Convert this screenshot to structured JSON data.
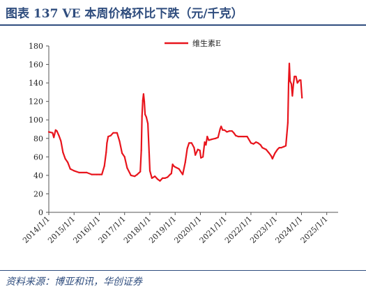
{
  "header": {
    "title": "图表 137 VE 本周价格环比下跌（元/千克）"
  },
  "footer": {
    "source": "资料来源：博亚和讯，华创证券"
  },
  "chart_data": {
    "type": "line",
    "title": "",
    "xlabel": "",
    "ylabel": "",
    "ylim": [
      0,
      180
    ],
    "y_ticks": [
      0,
      20,
      40,
      60,
      80,
      100,
      120,
      140,
      160,
      180
    ],
    "x_range": [
      2014.0,
      2025.45
    ],
    "x_ticks": [
      {
        "label": "2014/1/1",
        "value": 2014
      },
      {
        "label": "2015/1/1",
        "value": 2015
      },
      {
        "label": "2016/1/1",
        "value": 2016
      },
      {
        "label": "2017/1/1",
        "value": 2017
      },
      {
        "label": "2018/1/1",
        "value": 2018
      },
      {
        "label": "2019/1/1",
        "value": 2019
      },
      {
        "label": "2020/1/1",
        "value": 2020
      },
      {
        "label": "2021/1/1",
        "value": 2021
      },
      {
        "label": "2022/1/1",
        "value": 2022
      },
      {
        "label": "2023/1/1",
        "value": 2023
      },
      {
        "label": "2024/1/1",
        "value": 2024
      },
      {
        "label": "2025/1/1",
        "value": 2025
      }
    ],
    "grid": false,
    "legend_position": "top-center",
    "series": [
      {
        "name": "维生素E",
        "color": "#e8141c",
        "points": [
          [
            2014.0,
            87
          ],
          [
            2014.15,
            86
          ],
          [
            2014.2,
            81
          ],
          [
            2014.27,
            89
          ],
          [
            2014.32,
            88
          ],
          [
            2014.4,
            83
          ],
          [
            2014.48,
            77
          ],
          [
            2014.56,
            65
          ],
          [
            2014.65,
            58
          ],
          [
            2014.75,
            54
          ],
          [
            2014.85,
            47
          ],
          [
            2015.0,
            45
          ],
          [
            2015.2,
            43
          ],
          [
            2015.5,
            43
          ],
          [
            2015.7,
            41
          ],
          [
            2015.9,
            41
          ],
          [
            2016.0,
            41
          ],
          [
            2016.1,
            41
          ],
          [
            2016.2,
            50
          ],
          [
            2016.27,
            65
          ],
          [
            2016.3,
            75
          ],
          [
            2016.35,
            82
          ],
          [
            2016.45,
            83
          ],
          [
            2016.55,
            86
          ],
          [
            2016.7,
            86
          ],
          [
            2016.8,
            77
          ],
          [
            2016.9,
            64
          ],
          [
            2017.0,
            60
          ],
          [
            2017.1,
            48
          ],
          [
            2017.25,
            40
          ],
          [
            2017.4,
            39
          ],
          [
            2017.5,
            41
          ],
          [
            2017.62,
            44
          ],
          [
            2017.66,
            67
          ],
          [
            2017.69,
            104
          ],
          [
            2017.72,
            121
          ],
          [
            2017.75,
            128
          ],
          [
            2017.78,
            120
          ],
          [
            2017.81,
            106
          ],
          [
            2017.86,
            103
          ],
          [
            2017.92,
            96
          ],
          [
            2017.97,
            65
          ],
          [
            2018.0,
            45
          ],
          [
            2018.08,
            37
          ],
          [
            2018.2,
            39
          ],
          [
            2018.3,
            36
          ],
          [
            2018.4,
            34
          ],
          [
            2018.5,
            37
          ],
          [
            2018.6,
            37
          ],
          [
            2018.7,
            38
          ],
          [
            2018.8,
            41
          ],
          [
            2018.85,
            42
          ],
          [
            2018.9,
            52
          ],
          [
            2018.95,
            50
          ],
          [
            2019.0,
            49
          ],
          [
            2019.15,
            47
          ],
          [
            2019.3,
            41
          ],
          [
            2019.4,
            54
          ],
          [
            2019.48,
            69
          ],
          [
            2019.55,
            75
          ],
          [
            2019.65,
            75
          ],
          [
            2019.75,
            70
          ],
          [
            2019.8,
            62
          ],
          [
            2019.9,
            68
          ],
          [
            2019.98,
            67
          ],
          [
            2020.02,
            59
          ],
          [
            2020.1,
            60
          ],
          [
            2020.17,
            76
          ],
          [
            2020.22,
            73
          ],
          [
            2020.27,
            82
          ],
          [
            2020.33,
            78
          ],
          [
            2020.45,
            79
          ],
          [
            2020.6,
            80
          ],
          [
            2020.7,
            81
          ],
          [
            2020.78,
            90
          ],
          [
            2020.82,
            93
          ],
          [
            2020.88,
            89
          ],
          [
            2020.95,
            89
          ],
          [
            2021.05,
            87
          ],
          [
            2021.15,
            88
          ],
          [
            2021.25,
            88
          ],
          [
            2021.32,
            86
          ],
          [
            2021.4,
            83
          ],
          [
            2021.5,
            82
          ],
          [
            2021.7,
            82
          ],
          [
            2021.85,
            82
          ],
          [
            2022.0,
            75
          ],
          [
            2022.1,
            74
          ],
          [
            2022.2,
            76
          ],
          [
            2022.28,
            75
          ],
          [
            2022.38,
            73
          ],
          [
            2022.45,
            70
          ],
          [
            2022.6,
            68
          ],
          [
            2022.72,
            64
          ],
          [
            2022.8,
            61
          ],
          [
            2022.85,
            58
          ],
          [
            2022.95,
            64
          ],
          [
            2023.0,
            66
          ],
          [
            2023.05,
            68
          ],
          [
            2023.12,
            70
          ],
          [
            2023.2,
            70
          ],
          [
            2023.3,
            71
          ],
          [
            2023.38,
            72
          ],
          [
            2023.42,
            84
          ],
          [
            2023.46,
            97
          ],
          [
            2023.49,
            140
          ],
          [
            2023.52,
            161
          ],
          [
            2023.55,
            142
          ],
          [
            2023.6,
            139
          ],
          [
            2023.64,
            126
          ],
          [
            2023.68,
            138
          ],
          [
            2023.72,
            147
          ],
          [
            2023.78,
            147
          ],
          [
            2023.84,
            140
          ],
          [
            2023.92,
            143
          ],
          [
            2023.97,
            143
          ],
          [
            2024.02,
            124
          ]
        ]
      }
    ]
  }
}
